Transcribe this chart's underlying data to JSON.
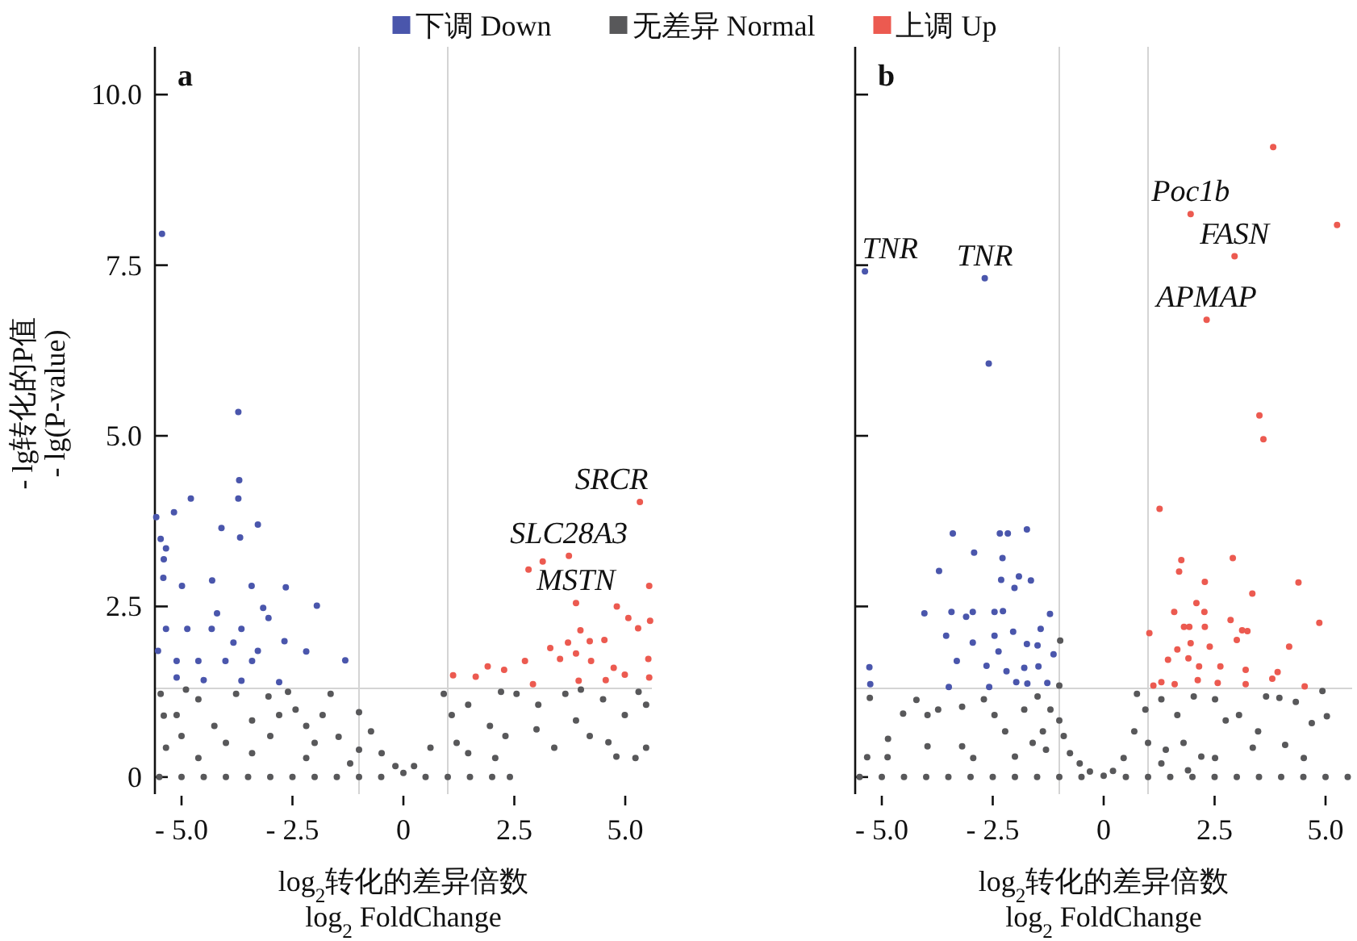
{
  "chart_data": [
    {
      "type": "scatter",
      "title": "a",
      "xlabel": "log$_{2}$转化的差异倍数\nlog$_{2}$ FoldChange",
      "ylabel": "- lg转化的P值\n- lg(P-value)",
      "legend": "top",
      "marker": "circle",
      "xlim": [
        -5.6,
        5.6
      ],
      "ylim": [
        -0.25,
        10.7
      ],
      "xticks": [
        {
          "value": -5,
          "label": "- 5.0"
        },
        {
          "value": -2.5,
          "label": "- 2.5"
        },
        {
          "value": 0,
          "label": "0"
        },
        {
          "value": 2.5,
          "label": "2.5"
        },
        {
          "value": 5,
          "label": "5.0"
        }
      ],
      "yticks": [
        {
          "value": 0,
          "label": "0"
        },
        {
          "value": 2.5,
          "label": "2.5"
        },
        {
          "value": 5,
          "label": "5.0"
        },
        {
          "value": 7.5,
          "label": "7.5"
        },
        {
          "value": 10,
          "label": "10.0"
        }
      ],
      "ref_lines": [
        {
          "axis": "x",
          "value": -1,
          "color": "#d4d4d4"
        },
        {
          "axis": "x",
          "value": 1,
          "color": "#d4d4d4"
        },
        {
          "axis": "y",
          "value": 1.3,
          "color": "#d4d4d4"
        }
      ],
      "annotations": [
        {
          "text": "SRCR",
          "x": 5.33,
          "y": 4.03
        },
        {
          "text": "SLC28A3",
          "x": 3.73,
          "y": 3.24
        },
        {
          "text": "MSTN",
          "x": 3.89,
          "y": 2.55
        }
      ],
      "series": [
        {
          "name": "无差异 Normal",
          "color": "#58585a",
          "x": [
            -5.47,
            -5.11,
            -5.35,
            -4.62,
            -4.26,
            -3.77,
            -3.41,
            -3.04,
            -2.8,
            -2.43,
            -2.19,
            -1.64,
            -1.82,
            -1.46,
            -1.0,
            -0.73,
            -0.49,
            -0.18,
            0,
            0.24,
            0.61,
            0.91,
            1.09,
            1.46,
            1.95,
            2.55,
            3.04,
            3.65,
            3.89,
            4.5,
            4.99,
            5.47,
            5.47,
            5.23,
            4.62,
            3.4,
            1.46,
            2.07,
            -4.62,
            -3.41,
            -2.19,
            -1.2,
            -5.5,
            -5,
            -4.5,
            -4,
            -3.5,
            -3,
            -2.5,
            -2,
            -1.5,
            -1,
            -0.5,
            0.5,
            1,
            1.5,
            2,
            2.4,
            -5.0,
            -4.0,
            -3.0,
            -2.0,
            -1.0,
            1.2,
            2.3,
            3.0,
            4.2,
            4.8,
            -5.4,
            -2.6,
            -4.9,
            2.2,
            4.0,
            5.3
          ],
          "values": [
            1.22,
            0.91,
            0.43,
            1.14,
            0.75,
            1.22,
            0.83,
            1.18,
            0.91,
            0.99,
            0.75,
            1.22,
            0.91,
            0.59,
            0.95,
            0.67,
            0.35,
            0.16,
            0.06,
            0.16,
            0.43,
            1.22,
            0.91,
            1.06,
            0.75,
            1.22,
            1.06,
            1.22,
            0.83,
            1.14,
            0.91,
            1.06,
            0.43,
            0.28,
            0.51,
            0.43,
            0.35,
            0.28,
            0.28,
            0.35,
            0.28,
            0.2,
            0,
            0,
            0,
            0,
            0,
            0,
            0,
            0,
            0,
            0,
            0,
            0,
            0,
            0,
            0,
            0,
            0.6,
            0.5,
            0.6,
            0.5,
            0.4,
            0.5,
            0.6,
            0.7,
            0.6,
            0.3,
            0.9,
            1.25,
            1.28,
            1.25,
            1.28,
            1.25
          ]
        },
        {
          "name": "下调 Down",
          "color": "#4a56ac",
          "x": [
            -5.44,
            -3.72,
            -3.7,
            -3.72,
            -4.79,
            -5.17,
            -3.68,
            -4.1,
            -3.28,
            -5.57,
            -5.47,
            -5.35,
            -5.4,
            -5.41,
            -4.31,
            -3.42,
            -2.65,
            -1.95,
            -1.31,
            -2.19,
            -2.68,
            -3.04,
            -4.99,
            -5.35,
            -4.87,
            -4.32,
            -3.65,
            -5.11,
            -4.62,
            -4.01,
            -3.41,
            -5.11,
            -4.5,
            -3.65,
            -2.8,
            -5.53,
            -4.2,
            -3.16,
            -3.83,
            -3.28
          ],
          "values": [
            7.96,
            5.35,
            4.35,
            4.08,
            4.08,
            3.88,
            3.51,
            3.65,
            3.7,
            3.81,
            3.49,
            3.35,
            3.19,
            2.92,
            2.88,
            2.8,
            2.78,
            2.51,
            1.71,
            1.84,
            1.99,
            2.33,
            2.8,
            2.17,
            2.17,
            2.17,
            2.17,
            1.7,
            1.7,
            1.7,
            1.7,
            1.46,
            1.42,
            1.41,
            1.39,
            1.85,
            2.4,
            2.48,
            1.97,
            1.85
          ]
        },
        {
          "name": "上调 Up",
          "color": "#ec5a50",
          "x": [
            5.33,
            2.82,
            3.14,
            3.73,
            3.89,
            5.54,
            4.81,
            5.07,
            5.56,
            3.99,
            4.2,
            4.53,
            5.29,
            3.71,
            3.31,
            3.53,
            3.89,
            4.23,
            2.74,
            2.27,
            1.9,
            1.63,
            1.12,
            2.92,
            3.95,
            4.56,
            4.99,
            5.54,
            4.74,
            5.52
          ],
          "values": [
            4.03,
            3.04,
            3.16,
            3.24,
            2.55,
            2.8,
            2.5,
            2.33,
            2.29,
            2.15,
            1.99,
            2.01,
            2.18,
            1.97,
            1.89,
            1.73,
            1.81,
            1.7,
            1.7,
            1.57,
            1.62,
            1.47,
            1.49,
            1.36,
            1.41,
            1.42,
            1.5,
            1.46,
            1.6,
            1.73
          ]
        }
      ]
    },
    {
      "type": "scatter",
      "title": "b",
      "xlabel": "log$_{2}$转化的差异倍数\nlog$_{2}$ FoldChange",
      "marker": "circle",
      "tick_labels": "x",
      "xlim": [
        -5.6,
        5.6
      ],
      "ylim": [
        -0.25,
        10.7
      ],
      "xticks": [
        {
          "value": -5,
          "label": "- 5.0"
        },
        {
          "value": -2.5,
          "label": "- 2.5"
        },
        {
          "value": 0,
          "label": "0"
        },
        {
          "value": 2.5,
          "label": "2.5"
        },
        {
          "value": 5,
          "label": "5.0"
        }
      ],
      "yticks": [
        {
          "value": 0,
          "label": null
        },
        {
          "value": 2.5,
          "label": null
        },
        {
          "value": 5,
          "label": null
        },
        {
          "value": 7.5,
          "label": null
        },
        {
          "value": 10,
          "label": null
        }
      ],
      "ref_lines": [
        {
          "axis": "x",
          "value": -1,
          "color": "#d4d4d4"
        },
        {
          "axis": "x",
          "value": 1,
          "color": "#d4d4d4"
        },
        {
          "axis": "y",
          "value": 1.3,
          "color": "#d4d4d4"
        }
      ],
      "annotations": [
        {
          "text": "TNR",
          "x": -5.38,
          "y": 7.41
        },
        {
          "text": "TNR",
          "x": -2.68,
          "y": 7.31
        },
        {
          "text": "Poc1b",
          "x": 1.96,
          "y": 8.25
        },
        {
          "text": "FASN",
          "x": 2.95,
          "y": 7.63
        },
        {
          "text": "APMAP",
          "x": 2.32,
          "y": 6.7
        }
      ],
      "series": [
        {
          "color": "#58585a",
          "x": [
            -5.27,
            -4.86,
            -4.52,
            -4.22,
            -3.97,
            -5.33,
            -4.87,
            -3.73,
            -3.19,
            -2.7,
            -2.46,
            -3.19,
            -3.97,
            -2.94,
            -2.22,
            -1.79,
            -1.49,
            -0.98,
            -1.0,
            -1.37,
            -1.2,
            -1.0,
            -0.76,
            -0.54,
            -0.31,
            0.0,
            0.21,
            0.45,
            0.69,
            0.75,
            0.94,
            1.3,
            1.66,
            2.03,
            2.51,
            2.75,
            3.05,
            3.48,
            3.66,
            3.96,
            4.33,
            4.69,
            5.03,
            4.93,
            4.51,
            4.09,
            3.36,
            2.51,
            1.3,
            1.9,
            -5.5,
            -5,
            -4.5,
            -4,
            -3.5,
            -3,
            -2.5,
            -2,
            -1.5,
            -1,
            -0.5,
            0.5,
            1,
            1.5,
            2,
            2.5,
            3,
            3.5,
            4,
            4.5,
            5,
            5.5,
            -1.6,
            -1.3,
            -0.9,
            1.0,
            1.4,
            1.8,
            -2.0,
            2.2
          ],
          "values": [
            1.16,
            0.56,
            0.93,
            1.13,
            0.91,
            0.29,
            0.29,
            0.99,
            1.03,
            1.14,
            0.91,
            0.45,
            0.45,
            0.28,
            0.67,
            0.99,
            1.18,
            2.0,
            1.34,
            0.67,
            0.99,
            0.83,
            0.35,
            0.2,
            0.08,
            0.02,
            0.09,
            0.28,
            0.67,
            1.22,
            0.99,
            1.14,
            0.91,
            1.18,
            1.14,
            0.83,
            0.91,
            0.67,
            1.18,
            1.16,
            1.1,
            0.79,
            0.89,
            1.26,
            0.28,
            0.47,
            0.43,
            0.28,
            0.2,
            0.1,
            0,
            0,
            0,
            0,
            0,
            0,
            0,
            0,
            0,
            0,
            0,
            0,
            0,
            0,
            0,
            0,
            0,
            0,
            0,
            0,
            0,
            0,
            0.5,
            0.4,
            0.6,
            0.5,
            0.4,
            0.5,
            0.3,
            0.3
          ]
        },
        {
          "color": "#4a56ac",
          "x": [
            -5.38,
            -2.68,
            -2.59,
            -5.28,
            -5.26,
            -3.4,
            -2.34,
            -2.16,
            -1.73,
            -2.92,
            -3.71,
            -2.28,
            -2.31,
            -1.91,
            -1.64,
            -2.01,
            -4.04,
            -3.43,
            -2.95,
            -2.46,
            -2.27,
            -3.1,
            -1.21,
            -1.42,
            -3.55,
            -2.95,
            -2.46,
            -2.04,
            -1.73,
            -1.49,
            -1.13,
            -3.31,
            -2.64,
            -2.19,
            -1.79,
            -1.47,
            -3.49,
            -2.58,
            -1.97,
            -1.27,
            -2.37,
            -1.72
          ],
          "values": [
            7.41,
            7.31,
            6.06,
            1.61,
            1.36,
            3.57,
            3.57,
            3.57,
            3.63,
            3.29,
            3.02,
            3.21,
            2.89,
            2.94,
            2.88,
            2.77,
            2.4,
            2.42,
            2.42,
            2.42,
            2.43,
            2.35,
            2.39,
            2.17,
            2.07,
            1.97,
            2.07,
            2.13,
            1.95,
            1.93,
            1.8,
            1.7,
            1.63,
            1.55,
            1.6,
            1.62,
            1.32,
            1.32,
            1.39,
            1.38,
            1.84,
            1.37
          ]
        },
        {
          "color": "#ec5a50",
          "x": [
            3.82,
            1.96,
            5.26,
            2.95,
            2.32,
            3.51,
            3.6,
            1.26,
            1.75,
            1.7,
            2.91,
            2.28,
            4.39,
            3.35,
            2.09,
            1.59,
            2.27,
            1.81,
            1.93,
            2.28,
            2.86,
            3.12,
            3.24,
            4.86,
            1.03,
            1.96,
            2.39,
            3.0,
            4.18,
            1.66,
            1.45,
            1.91,
            2.15,
            2.63,
            3.2,
            3.92,
            3.8,
            1.3,
            1.12,
            2.12,
            2.57,
            3.2,
            4.53,
            1.6
          ],
          "values": [
            9.23,
            8.25,
            8.09,
            7.63,
            6.7,
            5.3,
            4.95,
            3.93,
            3.18,
            3.01,
            3.21,
            2.86,
            2.85,
            2.69,
            2.55,
            2.42,
            2.42,
            2.2,
            2.2,
            2.2,
            2.3,
            2.15,
            2.14,
            2.26,
            2.11,
            1.96,
            1.91,
            2.01,
            1.91,
            1.87,
            1.72,
            1.74,
            1.62,
            1.62,
            1.57,
            1.54,
            1.44,
            1.39,
            1.34,
            1.42,
            1.38,
            1.36,
            1.33,
            1.36
          ]
        }
      ]
    }
  ]
}
